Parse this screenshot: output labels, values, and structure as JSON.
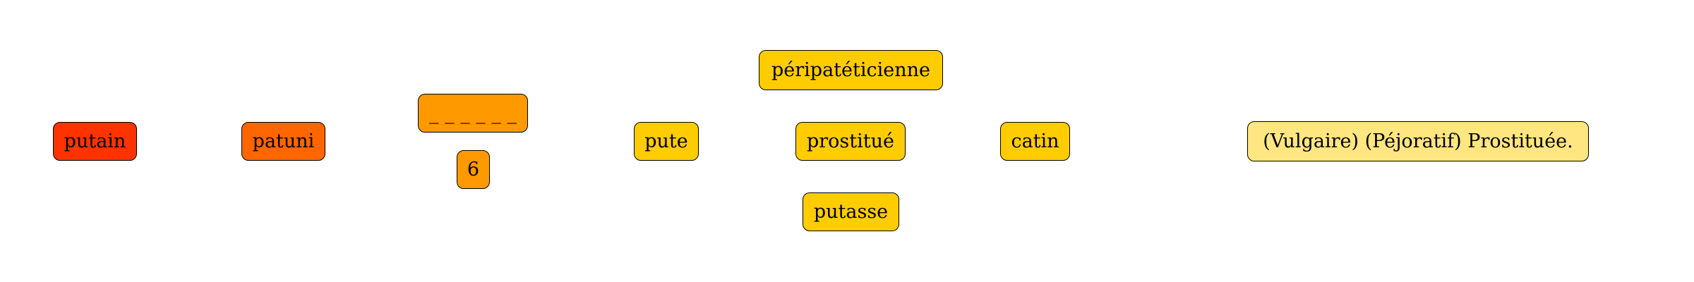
{
  "colors": {
    "target_word": "#ff3300",
    "scrambled": "#ff6600",
    "hint": "#ff9900",
    "synonym": "#ffcc00",
    "definition": "#ffe680"
  },
  "puzzle": {
    "target_word": "putain",
    "scrambled": "patuni",
    "blank_pattern": "_ _ _ _ _ _",
    "letter_count": "6"
  },
  "synonyms": {
    "pute": "pute",
    "peripateticienne": "péripatéticienne",
    "prostitue": "prostitué",
    "putasse": "putasse",
    "catin": "catin"
  },
  "definition": "(Vulgaire) (Péjoratif) Prostituée."
}
